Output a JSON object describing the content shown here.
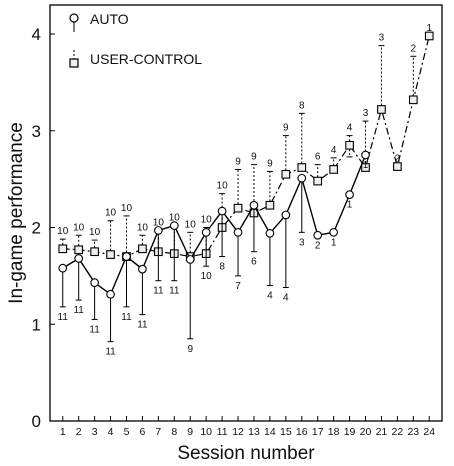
{
  "chart_data": {
    "type": "line",
    "xlabel": "Session number",
    "ylabel": "In-game performance",
    "xlim": [
      0.2,
      24.8
    ],
    "ylim": [
      0,
      4.3
    ],
    "x": [
      1,
      2,
      3,
      4,
      5,
      6,
      7,
      8,
      9,
      10,
      11,
      12,
      13,
      14,
      15,
      16,
      17,
      18,
      19,
      20,
      21,
      22,
      23,
      24
    ],
    "xticks": [
      1,
      2,
      3,
      4,
      5,
      6,
      7,
      8,
      9,
      10,
      11,
      12,
      13,
      14,
      15,
      16,
      17,
      18,
      19,
      20,
      21,
      22,
      23,
      24
    ],
    "yticks": [
      0,
      1,
      2,
      3,
      4
    ],
    "grid": false,
    "legend_position": "top-left",
    "series": [
      {
        "name": "AUTO",
        "marker": "circle",
        "line_style": "solid",
        "color": "#000000",
        "points": [
          {
            "x": 1,
            "y": 1.58,
            "lo": 1.18,
            "hi": 1.58,
            "n": 11
          },
          {
            "x": 2,
            "y": 1.68,
            "lo": 1.25,
            "hi": 1.68,
            "n": 11
          },
          {
            "x": 3,
            "y": 1.43,
            "lo": 1.05,
            "hi": 1.43,
            "n": 11
          },
          {
            "x": 4,
            "y": 1.31,
            "lo": 0.82,
            "hi": 1.31,
            "n": 11
          },
          {
            "x": 5,
            "y": 1.7,
            "lo": 1.18,
            "hi": 1.7,
            "n": 11
          },
          {
            "x": 6,
            "y": 1.57,
            "lo": 1.1,
            "hi": 1.57,
            "n": 11
          },
          {
            "x": 7,
            "y": 1.97,
            "lo": 1.45,
            "hi": 1.97,
            "n": 11
          },
          {
            "x": 8,
            "y": 2.02,
            "lo": 1.45,
            "hi": 2.02,
            "n": 11
          },
          {
            "x": 9,
            "y": 1.67,
            "lo": 0.85,
            "hi": 1.67,
            "n": 9
          },
          {
            "x": 10,
            "y": 1.95,
            "lo": 1.6,
            "hi": 1.95,
            "n": 10
          },
          {
            "x": 11,
            "y": 2.17,
            "lo": 1.7,
            "hi": 2.17,
            "n": 8
          },
          {
            "x": 12,
            "y": 1.95,
            "lo": 1.5,
            "hi": 1.95,
            "n": 7
          },
          {
            "x": 13,
            "y": 2.23,
            "lo": 1.75,
            "hi": 2.23,
            "n": 6
          },
          {
            "x": 14,
            "y": 1.94,
            "lo": 1.4,
            "hi": 1.94,
            "n": 4
          },
          {
            "x": 15,
            "y": 2.13,
            "lo": 1.38,
            "hi": 2.13,
            "n": 4
          },
          {
            "x": 16,
            "y": 2.51,
            "lo": 1.95,
            "hi": 2.51,
            "n": 3
          },
          {
            "x": 17,
            "y": 1.92,
            "lo": 1.92,
            "hi": 1.92,
            "n": 2
          },
          {
            "x": 18,
            "y": 1.95,
            "lo": 1.95,
            "hi": 1.95,
            "n": 1
          },
          {
            "x": 19,
            "y": 2.34,
            "lo": 2.34,
            "hi": 2.34,
            "n": 1
          },
          {
            "x": 20,
            "y": 2.75,
            "lo": 2.75,
            "hi": 2.75,
            "n": 1
          }
        ]
      },
      {
        "name": "USER-CONTROL",
        "marker": "square",
        "line_style": "dash-dot",
        "color": "#000000",
        "points": [
          {
            "x": 1,
            "y": 1.78,
            "lo": 1.78,
            "hi": 1.88,
            "n": 10
          },
          {
            "x": 2,
            "y": 1.77,
            "lo": 1.77,
            "hi": 1.92,
            "n": 10
          },
          {
            "x": 3,
            "y": 1.75,
            "lo": 1.75,
            "hi": 1.87,
            "n": 10
          },
          {
            "x": 4,
            "y": 1.72,
            "lo": 1.72,
            "hi": 2.07,
            "n": 10
          },
          {
            "x": 5,
            "y": 1.7,
            "lo": 1.7,
            "hi": 2.12,
            "n": 10
          },
          {
            "x": 6,
            "y": 1.78,
            "lo": 1.78,
            "hi": 1.92,
            "n": 10
          },
          {
            "x": 7,
            "y": 1.75,
            "lo": 1.75,
            "hi": 1.97,
            "n": 10
          },
          {
            "x": 8,
            "y": 1.73,
            "lo": 1.73,
            "hi": 2.02,
            "n": 10
          },
          {
            "x": 9,
            "y": 1.7,
            "lo": 1.7,
            "hi": 1.95,
            "n": 10
          },
          {
            "x": 10,
            "y": 1.73,
            "lo": 1.73,
            "hi": 2.0,
            "n": 10
          },
          {
            "x": 11,
            "y": 2.0,
            "lo": 2.0,
            "hi": 2.35,
            "n": 10
          },
          {
            "x": 12,
            "y": 2.2,
            "lo": 2.2,
            "hi": 2.6,
            "n": 9
          },
          {
            "x": 13,
            "y": 2.15,
            "lo": 2.15,
            "hi": 2.65,
            "n": 9
          },
          {
            "x": 14,
            "y": 2.23,
            "lo": 2.23,
            "hi": 2.58,
            "n": 9
          },
          {
            "x": 15,
            "y": 2.55,
            "lo": 2.55,
            "hi": 2.95,
            "n": 9
          },
          {
            "x": 16,
            "y": 2.62,
            "lo": 2.62,
            "hi": 3.18,
            "n": 8
          },
          {
            "x": 17,
            "y": 2.48,
            "lo": 2.48,
            "hi": 2.65,
            "n": 6
          },
          {
            "x": 18,
            "y": 2.6,
            "lo": 2.6,
            "hi": 2.72,
            "n": 4
          },
          {
            "x": 19,
            "y": 2.85,
            "lo": 2.73,
            "hi": 2.95,
            "n": 4
          },
          {
            "x": 20,
            "y": 2.62,
            "lo": 2.62,
            "hi": 3.1,
            "n": 3
          },
          {
            "x": 21,
            "y": 3.22,
            "lo": 3.22,
            "hi": 3.88,
            "n": 3
          },
          {
            "x": 22,
            "y": 2.63,
            "lo": 2.63,
            "hi": 2.63,
            "n": 2
          },
          {
            "x": 23,
            "y": 3.32,
            "lo": 3.32,
            "hi": 3.77,
            "n": 2
          },
          {
            "x": 24,
            "y": 3.98,
            "lo": 3.98,
            "hi": 3.98,
            "n": 1
          }
        ]
      }
    ]
  }
}
